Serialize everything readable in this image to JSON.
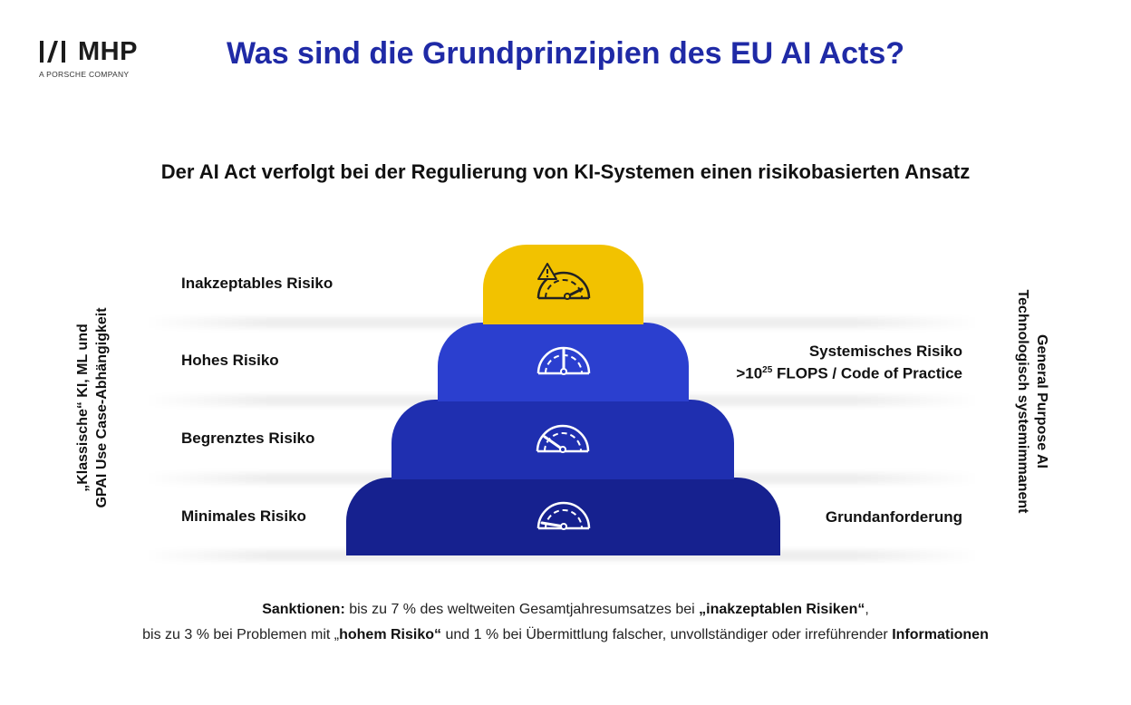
{
  "logo": {
    "name": "MHP",
    "subtitle": "A PORSCHE COMPANY"
  },
  "title": "Was sind die Grundprinzipien des EU AI Acts?",
  "subtitle": "Der AI Act verfolgt bei der Regulierung von KI-Systemen einen risikobasierten Ansatz",
  "colors": {
    "title": "#1f2aa6",
    "tier_inakzeptabel": "#f2c200",
    "tier_hoch": "#2b3fcf",
    "tier_begrenzt": "#1f2fb0",
    "tier_minimal": "#16218f"
  },
  "levels": [
    {
      "label": "Inakzeptables Risiko",
      "icon": "warning-gauge-icon"
    },
    {
      "label": "Hohes Risiko",
      "icon": "gauge-high-icon"
    },
    {
      "label": "Begrenztes Risiko",
      "icon": "gauge-medium-icon"
    },
    {
      "label": "Minimales Risiko",
      "icon": "gauge-low-icon"
    }
  ],
  "left_vertical": {
    "line1": "„Klassische“ KI, ML und",
    "line2": "GPAI Use Case-Abhängigkeit"
  },
  "right_vertical": {
    "line1": "General Purpose AI",
    "line2": "Technologisch systemimmanent"
  },
  "right_labels": {
    "systemic_line1": "Systemisches Risiko",
    "systemic_prefix": ">10",
    "systemic_exp": "25",
    "systemic_suffix": " FLOPS / Code of Practice",
    "base": "Grundanforderung"
  },
  "footer": {
    "l1_b1": "Sanktionen:",
    "l1_t1": " bis zu 7 % des weltweiten Gesamtjahresumsatzes bei ",
    "l1_b2": "„inakzeptablen Risiken“",
    "l1_t2": ",",
    "l2_t1": "bis zu 3 % bei Problemen mit „",
    "l2_b1": "hohem Risiko“",
    "l2_t2": " und 1 % bei Übermittlung falscher, unvollständiger oder irreführender ",
    "l2_b2": "Informationen"
  }
}
